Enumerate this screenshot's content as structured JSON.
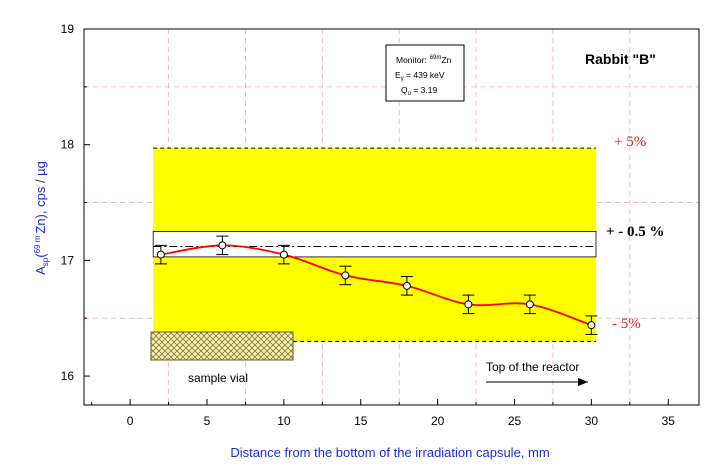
{
  "chart_data": {
    "type": "scatter",
    "title": "Rabbit \"B\"",
    "xlabel": "Distance from the bottom of the irradiation capsule,  mm",
    "ylabel": {
      "prefix": "A",
      "sub": "sp",
      "paren_open": "(",
      "sup": "69 m",
      "element": "Zn), cps / µg"
    },
    "xlim": [
      -3,
      37
    ],
    "ylim": [
      15.75,
      19
    ],
    "xticks": [
      0,
      5,
      10,
      15,
      20,
      25,
      30,
      35
    ],
    "yticks": [
      16,
      17,
      18,
      19
    ],
    "grid": "dashed-red",
    "monitor_box": {
      "line1": "Monitor:",
      "line1_sup": "69m",
      "line1_suffix": "Zn",
      "line2_prefix": "E",
      "line2_sub": "γ",
      "line2_value": " = 439 keV",
      "line3_prefix": "Q",
      "line3_sub": "o",
      "line3_value": " = 3.19"
    },
    "bands": {
      "outer": {
        "y_low": 16.3,
        "y_high": 17.97,
        "x_start": 1.5,
        "x_end": 30.3,
        "color": "#ffff00"
      },
      "inner": {
        "y_low": 17.03,
        "y_high": 17.25,
        "x_start": 1.5,
        "x_end": 30.3,
        "color": "#ffffff"
      },
      "mean": 17.12
    },
    "annotations": {
      "plus5": "+ 5%",
      "plus_minus": "+ -  0.5 %",
      "minus5": "- 5%",
      "vial_label": "sample vial",
      "top_label": "Top of the reactor"
    },
    "series": [
      {
        "x": [
          2,
          6,
          10,
          14,
          18,
          22,
          26,
          30
        ],
        "y": [
          17.05,
          17.13,
          17.05,
          16.87,
          16.78,
          16.62,
          16.62,
          16.44
        ],
        "err": [
          0.08,
          0.08,
          0.08,
          0.08,
          0.08,
          0.08,
          0.08,
          0.08
        ],
        "color": "#ff0000"
      }
    ]
  }
}
